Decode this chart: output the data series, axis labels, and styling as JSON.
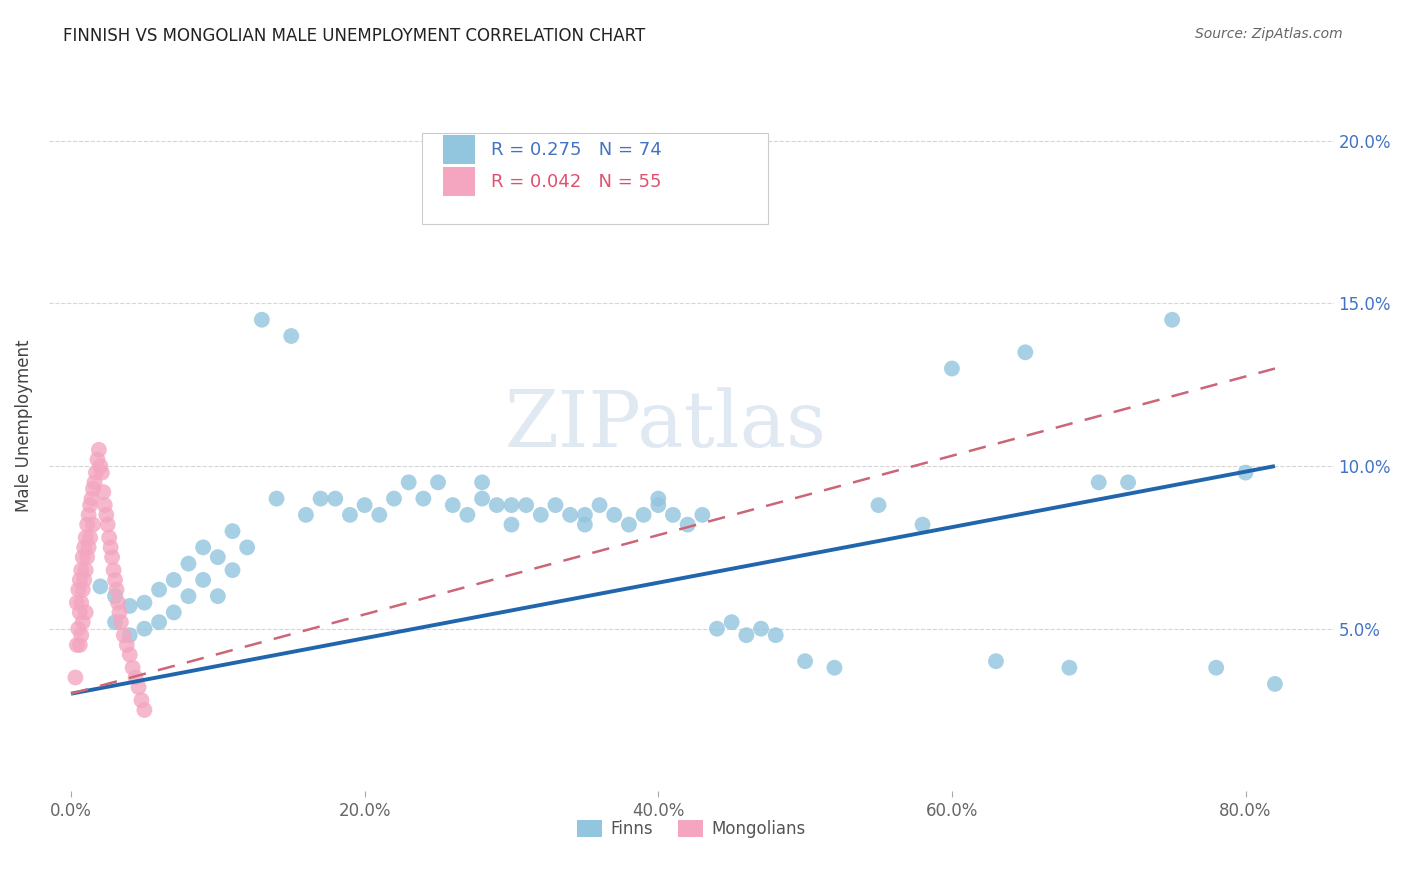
{
  "title": "FINNISH VS MONGOLIAN MALE UNEMPLOYMENT CORRELATION CHART",
  "source": "Source: ZipAtlas.com",
  "ylabel": "Male Unemployment",
  "finn_color": "#92c5de",
  "mong_color": "#f4a6c0",
  "finn_line_color": "#2166ac",
  "mong_line_color": "#d6604d",
  "watermark_color": "#c8d8e8",
  "finn_x": [
    0.02,
    0.03,
    0.03,
    0.04,
    0.04,
    0.05,
    0.05,
    0.06,
    0.06,
    0.07,
    0.07,
    0.08,
    0.08,
    0.09,
    0.09,
    0.1,
    0.1,
    0.11,
    0.11,
    0.12,
    0.13,
    0.14,
    0.15,
    0.16,
    0.17,
    0.18,
    0.19,
    0.2,
    0.21,
    0.22,
    0.23,
    0.24,
    0.25,
    0.26,
    0.27,
    0.28,
    0.29,
    0.3,
    0.31,
    0.32,
    0.33,
    0.34,
    0.35,
    0.36,
    0.37,
    0.38,
    0.39,
    0.4,
    0.41,
    0.42,
    0.43,
    0.44,
    0.45,
    0.46,
    0.47,
    0.48,
    0.5,
    0.52,
    0.55,
    0.58,
    0.6,
    0.63,
    0.65,
    0.68,
    0.7,
    0.72,
    0.75,
    0.78,
    0.8,
    0.82,
    0.28,
    0.3,
    0.35,
    0.4
  ],
  "finn_y": [
    0.063,
    0.06,
    0.052,
    0.057,
    0.048,
    0.058,
    0.05,
    0.062,
    0.052,
    0.065,
    0.055,
    0.07,
    0.06,
    0.075,
    0.065,
    0.072,
    0.06,
    0.08,
    0.068,
    0.075,
    0.145,
    0.09,
    0.14,
    0.085,
    0.09,
    0.09,
    0.085,
    0.088,
    0.085,
    0.09,
    0.095,
    0.09,
    0.095,
    0.088,
    0.085,
    0.09,
    0.088,
    0.082,
    0.088,
    0.085,
    0.088,
    0.085,
    0.082,
    0.088,
    0.085,
    0.082,
    0.085,
    0.088,
    0.085,
    0.082,
    0.085,
    0.05,
    0.052,
    0.048,
    0.05,
    0.048,
    0.04,
    0.038,
    0.088,
    0.082,
    0.13,
    0.04,
    0.135,
    0.038,
    0.095,
    0.095,
    0.145,
    0.038,
    0.098,
    0.033,
    0.095,
    0.088,
    0.085,
    0.09
  ],
  "mong_x": [
    0.003,
    0.004,
    0.004,
    0.005,
    0.005,
    0.006,
    0.006,
    0.006,
    0.007,
    0.007,
    0.007,
    0.008,
    0.008,
    0.008,
    0.009,
    0.009,
    0.01,
    0.01,
    0.01,
    0.011,
    0.011,
    0.012,
    0.012,
    0.013,
    0.013,
    0.014,
    0.015,
    0.015,
    0.016,
    0.017,
    0.018,
    0.019,
    0.02,
    0.021,
    0.022,
    0.023,
    0.024,
    0.025,
    0.026,
    0.027,
    0.028,
    0.029,
    0.03,
    0.031,
    0.032,
    0.033,
    0.034,
    0.036,
    0.038,
    0.04,
    0.042,
    0.044,
    0.046,
    0.048,
    0.05
  ],
  "mong_y": [
    0.035,
    0.058,
    0.045,
    0.062,
    0.05,
    0.065,
    0.055,
    0.045,
    0.068,
    0.058,
    0.048,
    0.072,
    0.062,
    0.052,
    0.075,
    0.065,
    0.078,
    0.068,
    0.055,
    0.082,
    0.072,
    0.085,
    0.075,
    0.088,
    0.078,
    0.09,
    0.093,
    0.082,
    0.095,
    0.098,
    0.102,
    0.105,
    0.1,
    0.098,
    0.092,
    0.088,
    0.085,
    0.082,
    0.078,
    0.075,
    0.072,
    0.068,
    0.065,
    0.062,
    0.058,
    0.055,
    0.052,
    0.048,
    0.045,
    0.042,
    0.038,
    0.035,
    0.032,
    0.028,
    0.025
  ],
  "finn_line_x0": 0.0,
  "finn_line_x1": 0.82,
  "finn_line_y0": 0.03,
  "finn_line_y1": 0.1,
  "mong_line_x0": 0.0,
  "mong_line_x1": 0.82,
  "mong_line_y0": 0.03,
  "mong_line_y1": 0.13,
  "xlim_min": -0.015,
  "xlim_max": 0.86,
  "ylim_min": 0.0,
  "ylim_max": 0.225,
  "xticks": [
    0.0,
    0.2,
    0.4,
    0.6,
    0.8
  ],
  "xticklabels": [
    "0.0%",
    "20.0%",
    "40.0%",
    "60.0%",
    "80.0%"
  ],
  "yticks": [
    0.05,
    0.1,
    0.15,
    0.2
  ],
  "yticklabels": [
    "5.0%",
    "10.0%",
    "15.0%",
    "20.0%"
  ],
  "title_fontsize": 12,
  "source_fontsize": 10,
  "tick_fontsize": 12,
  "ylabel_fontsize": 12,
  "legend_finn_label": "R = 0.275   N = 74",
  "legend_mong_label": "R = 0.042   N = 55",
  "legend_finn_color": "#4472c4",
  "legend_mong_color": "#e05070",
  "bottom_legend_finn": "Finns",
  "bottom_legend_mong": "Mongolians"
}
